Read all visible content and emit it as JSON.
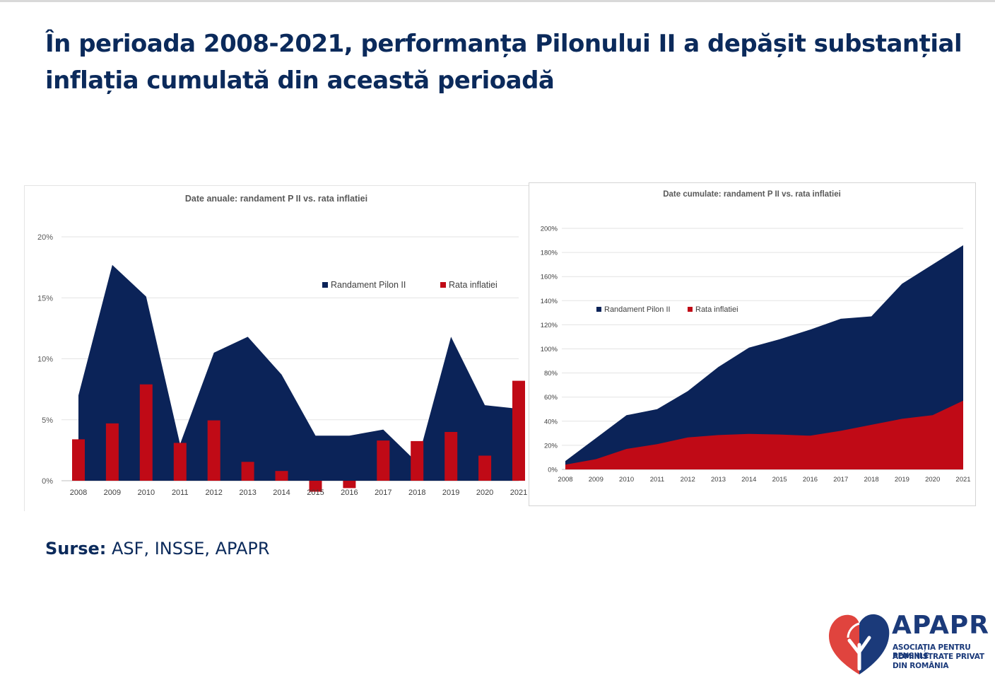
{
  "slide": {
    "title": "În perioada 2008-2021, performanța Pilonului II a depășit substanțial inflația cumulată din această perioadă",
    "sources_label": "Surse:",
    "sources_text": " ASF, INSSE, APAPR"
  },
  "logo": {
    "name": "APAPR",
    "line1": "ASOCIAȚIA PENTRU PENSIILE",
    "line2": "ADMINISTRATE PRIVAT",
    "line3": "DIN ROMÂNIA",
    "colors": {
      "red": "#e0443e",
      "blue": "#1b3a7a"
    }
  },
  "chart_data": [
    {
      "type": "area+bar",
      "title": "Date anuale: randament P II vs. rata inflatiei",
      "categories": [
        "2008",
        "2009",
        "2010",
        "2011",
        "2012",
        "2013",
        "2014",
        "2015",
        "2016",
        "2017",
        "2018",
        "2019",
        "2020",
        "2021"
      ],
      "series": [
        {
          "name": "Randament Pilon II",
          "type": "area",
          "color": "#0b2358",
          "values": [
            7.0,
            17.7,
            15.1,
            3.0,
            10.5,
            11.8,
            8.7,
            3.7,
            3.7,
            4.2,
            1.5,
            11.8,
            6.2,
            5.9
          ]
        },
        {
          "name": "Rata inflatiei",
          "type": "bar",
          "color": "#c00a16",
          "values": [
            3.4,
            4.7,
            7.9,
            3.1,
            4.95,
            1.55,
            0.8,
            -0.9,
            -0.6,
            3.3,
            3.25,
            4.0,
            2.06,
            8.2
          ]
        }
      ],
      "yticks": [
        "0%",
        "5%",
        "10%",
        "15%",
        "20%"
      ],
      "ylim": [
        -1,
        20
      ],
      "grid": true,
      "legend_position": "top-right"
    },
    {
      "type": "area",
      "title": "Date cumulate: randament P II vs. rata inflatiei",
      "categories": [
        "2008",
        "2009",
        "2010",
        "2011",
        "2012",
        "2013",
        "2014",
        "2015",
        "2016",
        "2017",
        "2018",
        "2019",
        "2020",
        "2021"
      ],
      "series": [
        {
          "name": "Randament Pilon II",
          "color": "#0b2358",
          "values": [
            7,
            26,
            45,
            50,
            65,
            85,
            101,
            108,
            116,
            125,
            127,
            154,
            170,
            186
          ]
        },
        {
          "name": "Rata inflatiei",
          "color": "#c00a16",
          "values": [
            4,
            8.5,
            17,
            21,
            26.5,
            28.5,
            29.5,
            29,
            28,
            32,
            37,
            42,
            45,
            57
          ]
        }
      ],
      "yticks": [
        "0%",
        "20%",
        "40%",
        "60%",
        "80%",
        "100%",
        "120%",
        "140%",
        "160%",
        "180%",
        "200%"
      ],
      "ylim": [
        0,
        200
      ],
      "grid": true,
      "legend_position": "top-left"
    }
  ]
}
